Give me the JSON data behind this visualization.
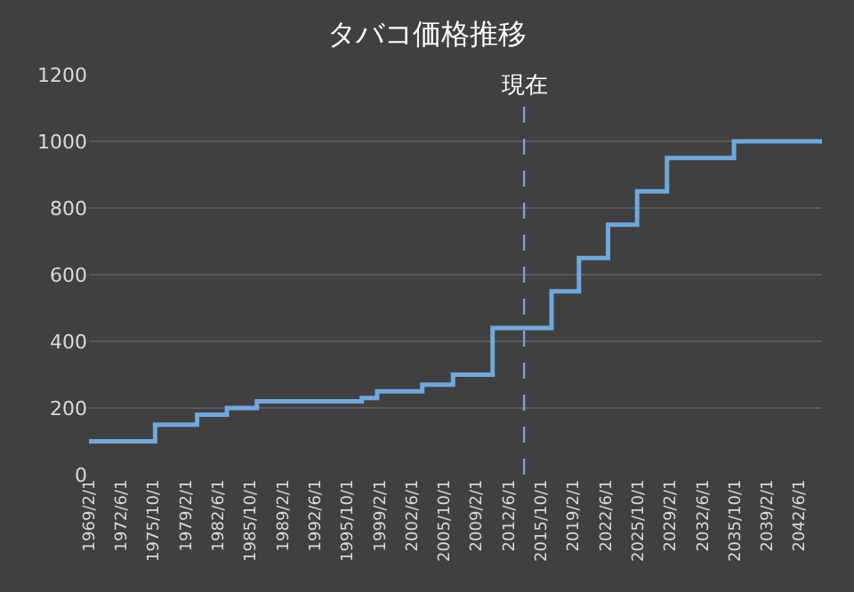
{
  "chart_data": {
    "type": "step",
    "title": "タバコ価格推移",
    "x": [
      "1969-02-01",
      "1975-12-01",
      "1980-04-01",
      "1983-05-01",
      "1986-06-01",
      "1997-04-01",
      "1998-11-01",
      "2003-07-01",
      "2006-09-01",
      "2010-10-01",
      "2016-11-01",
      "2019-09-01",
      "2022-09-01",
      "2025-09-01",
      "2028-10-01",
      "2035-09-01",
      "2044-10-01"
    ],
    "series": [
      {
        "color": "#6fa8dc",
        "values": [
          100,
          150,
          180,
          200,
          220,
          230,
          250,
          270,
          300,
          440,
          550,
          650,
          750,
          850,
          950,
          1000,
          1000
        ]
      }
    ],
    "ylim": [
      0,
      1200
    ],
    "yticks": [
      0,
      200,
      400,
      600,
      800,
      1000,
      1200
    ],
    "xlim": [
      "1969-02-01",
      "2044-10-01"
    ],
    "xticks": [
      {
        "value": "1969-02-01",
        "label": "1969/2/1"
      },
      {
        "value": "1972-06-01",
        "label": "1972/6/1"
      },
      {
        "value": "1975-10-01",
        "label": "1975/10/1"
      },
      {
        "value": "1979-02-01",
        "label": "1979/2/1"
      },
      {
        "value": "1982-06-01",
        "label": "1982/6/1"
      },
      {
        "value": "1985-10-01",
        "label": "1985/10/1"
      },
      {
        "value": "1989-02-01",
        "label": "1989/2/1"
      },
      {
        "value": "1992-06-01",
        "label": "1992/6/1"
      },
      {
        "value": "1995-10-01",
        "label": "1995/10/1"
      },
      {
        "value": "1999-02-01",
        "label": "1999/2/1"
      },
      {
        "value": "2002-06-01",
        "label": "2002/6/1"
      },
      {
        "value": "2005-10-01",
        "label": "2005/10/1"
      },
      {
        "value": "2009-02-01",
        "label": "2009/2/1"
      },
      {
        "value": "2012-06-01",
        "label": "2012/6/1"
      },
      {
        "value": "2015-10-01",
        "label": "2015/10/1"
      },
      {
        "value": "2019-02-01",
        "label": "2019/2/1"
      },
      {
        "value": "2022-06-01",
        "label": "2022/6/1"
      },
      {
        "value": "2025-10-01",
        "label": "2025/10/1"
      },
      {
        "value": "2029-02-01",
        "label": "2029/2/1"
      },
      {
        "value": "2032-06-01",
        "label": "2032/6/1"
      },
      {
        "value": "2035-10-01",
        "label": "2035/10/1"
      },
      {
        "value": "2039-02-01",
        "label": "2039/2/1"
      },
      {
        "value": "2042-06-01",
        "label": "2042/6/1"
      }
    ],
    "ref_lines": [
      {
        "axis": "x",
        "value": "2014-01-01",
        "label": "現在",
        "color": "#7f9fcf",
        "line_style": "dashed"
      }
    ],
    "grid": "y",
    "marker": "none",
    "line_style": "solid"
  }
}
